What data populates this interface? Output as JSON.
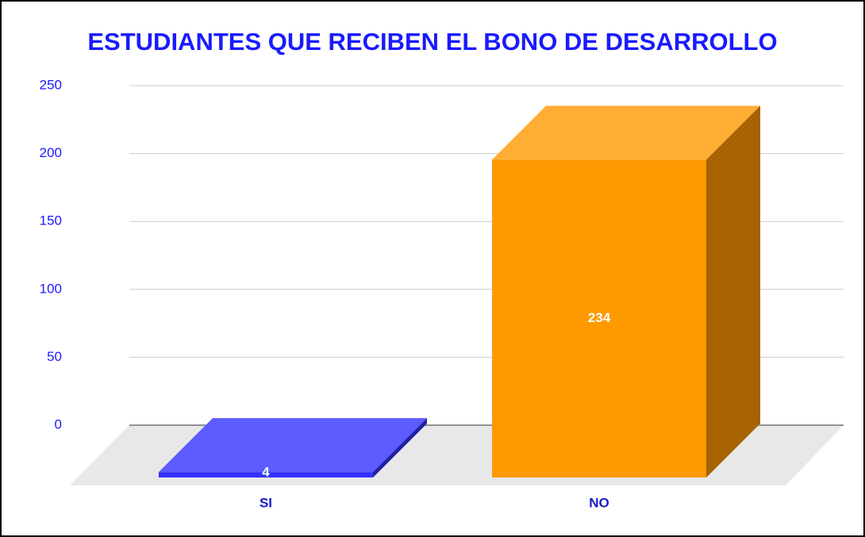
{
  "chart_data": {
    "type": "bar3d",
    "title": "ESTUDIANTES QUE RECIBEN EL BONO DE DESARROLLO",
    "categories": [
      "SI",
      "NO"
    ],
    "values": [
      4,
      234
    ],
    "colors": [
      "#3333ff",
      "#ff9900"
    ],
    "ylim": [
      0,
      250
    ],
    "yticks": [
      0,
      50,
      100,
      150,
      200,
      250
    ],
    "grid": true
  }
}
